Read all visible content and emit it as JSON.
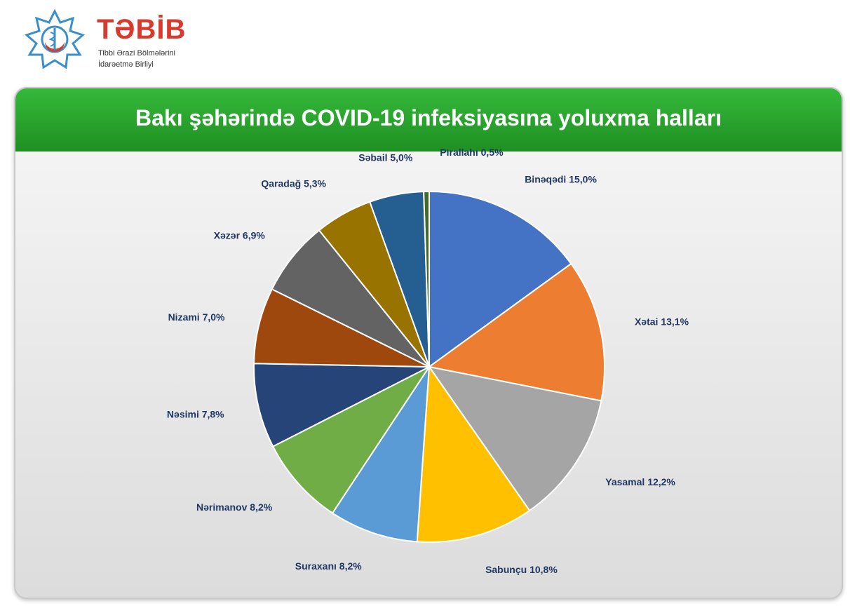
{
  "logo": {
    "name": "TƏBİB",
    "subtitle_line1": "Tibbi Ərazi Bölmələrini",
    "subtitle_line2": "İdarəetmə Birliyi"
  },
  "chart_data": {
    "type": "pie",
    "title": "Bakı şəhərində COVID-19 infeksiyasına yoluxma halları",
    "slices": [
      {
        "label": "Binəqədi",
        "value": 15.0,
        "display": "Binəqədi 15,0%",
        "color": "#4472c4"
      },
      {
        "label": "Xətai",
        "value": 13.1,
        "display": "Xətai 13,1%",
        "color": "#ed7d31"
      },
      {
        "label": "Yasamal",
        "value": 12.2,
        "display": "Yasamal 12,2%",
        "color": "#a5a5a5"
      },
      {
        "label": "Sabunçu",
        "value": 10.8,
        "display": "Sabunçu 10,8%",
        "color": "#ffc000"
      },
      {
        "label": "Suraxanı",
        "value": 8.2,
        "display": "Suraxanı 8,2%",
        "color": "#5b9bd5"
      },
      {
        "label": "Nərimanov",
        "value": 8.2,
        "display": "Nərimanov 8,2%",
        "color": "#70ad47"
      },
      {
        "label": "Nəsimi",
        "value": 7.8,
        "display": "Nəsimi 7,8%",
        "color": "#264478"
      },
      {
        "label": "Nizami",
        "value": 7.0,
        "display": "Nizami 7,0%",
        "color": "#9e480e"
      },
      {
        "label": "Xəzər",
        "value": 6.9,
        "display": "Xəzər 6,9%",
        "color": "#636363"
      },
      {
        "label": "Qaradağ",
        "value": 5.3,
        "display": "Qaradağ 5,3%",
        "color": "#997300"
      },
      {
        "label": "Səbail",
        "value": 5.0,
        "display": "Səbail 5,0%",
        "color": "#255e91"
      },
      {
        "label": "Pirallahı",
        "value": 0.5,
        "display": "Pirallahı 0,5%",
        "color": "#43682b"
      }
    ]
  }
}
